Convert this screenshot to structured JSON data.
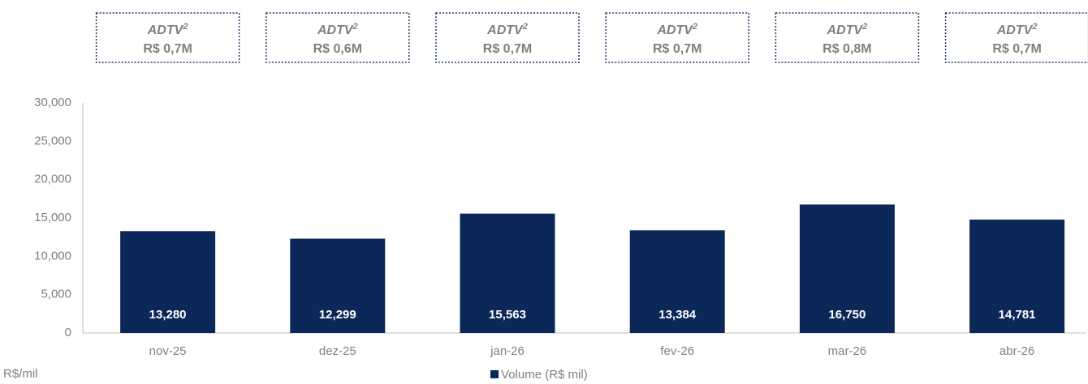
{
  "chart_data": {
    "type": "bar",
    "annotations": [
      {
        "label": "ADTV",
        "sup": "2",
        "text": "R$ 0,7M"
      },
      {
        "label": "ADTV",
        "sup": "2",
        "text": "R$ 0,6M"
      },
      {
        "label": "ADTV",
        "sup": "2",
        "text": "R$ 0,7M"
      },
      {
        "label": "ADTV",
        "sup": "2",
        "text": "R$ 0,7M"
      },
      {
        "label": "ADTV",
        "sup": "2",
        "text": "R$ 0,8M"
      },
      {
        "label": "ADTV",
        "sup": "2",
        "text": "R$ 0,7M"
      }
    ],
    "categories": [
      "nov-25",
      "dez-25",
      "jan-26",
      "fev-26",
      "mar-26",
      "abr-26"
    ],
    "series": [
      {
        "name": "Volume (R$ mil)",
        "color": "#0b2858",
        "values": [
          13280,
          12299,
          15563,
          13384,
          16750,
          14781
        ],
        "value_labels": [
          "13,280",
          "12,299",
          "15,563",
          "13,384",
          "16,750",
          "14,781"
        ]
      }
    ],
    "ylabel": "R$/mil",
    "ylim": [
      0,
      30000
    ],
    "yticks": [
      0,
      {
        "value": 5000,
        "label": "5,000"
      },
      {
        "value": 10000,
        "label": "10,000"
      },
      {
        "value": 15000,
        "label": "15,000"
      },
      {
        "value": 20000,
        "label": "20,000"
      },
      {
        "value": 25000,
        "label": "25,000"
      },
      {
        "value": 30000,
        "label": "30,000"
      }
    ],
    "legend": "bottom"
  }
}
